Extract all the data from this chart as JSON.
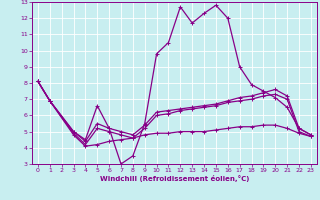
{
  "xlabel": "Windchill (Refroidissement éolien,°C)",
  "background_color": "#c8eef0",
  "grid_color": "#ffffff",
  "line_color": "#880088",
  "xlim": [
    -0.5,
    23.5
  ],
  "ylim": [
    3,
    13
  ],
  "xticks": [
    0,
    1,
    2,
    3,
    4,
    5,
    6,
    7,
    8,
    9,
    10,
    11,
    12,
    13,
    14,
    15,
    16,
    17,
    18,
    19,
    20,
    21,
    22,
    23
  ],
  "yticks": [
    3,
    4,
    5,
    6,
    7,
    8,
    9,
    10,
    11,
    12,
    13
  ],
  "series": {
    "main": {
      "x": [
        0,
        1,
        3,
        4,
        5,
        6,
        7,
        8,
        9,
        10,
        11,
        12,
        13,
        14,
        15,
        16,
        17,
        18,
        19,
        20,
        21,
        22,
        23
      ],
      "y": [
        8.1,
        6.9,
        5.0,
        4.5,
        6.6,
        5.2,
        3.0,
        3.5,
        5.5,
        9.8,
        10.5,
        12.7,
        11.7,
        12.3,
        12.8,
        12.0,
        9.0,
        7.9,
        7.5,
        7.1,
        6.5,
        5.2,
        4.8
      ]
    },
    "line2": {
      "x": [
        0,
        1,
        3,
        4,
        5,
        6,
        7,
        8,
        9,
        10,
        11,
        12,
        13,
        14,
        15,
        16,
        17,
        18,
        19,
        20,
        21,
        22,
        23
      ],
      "y": [
        8.1,
        6.9,
        5.0,
        4.4,
        5.5,
        5.2,
        5.0,
        4.8,
        5.4,
        6.2,
        6.3,
        6.4,
        6.5,
        6.6,
        6.7,
        6.9,
        7.1,
        7.2,
        7.4,
        7.6,
        7.2,
        5.2,
        4.8
      ]
    },
    "line3": {
      "x": [
        0,
        1,
        3,
        4,
        5,
        6,
        7,
        8,
        9,
        10,
        11,
        12,
        13,
        14,
        15,
        16,
        17,
        18,
        19,
        20,
        21,
        22,
        23
      ],
      "y": [
        8.1,
        6.9,
        4.9,
        4.2,
        5.2,
        5.0,
        4.8,
        4.6,
        5.2,
        6.0,
        6.1,
        6.3,
        6.4,
        6.5,
        6.6,
        6.8,
        6.9,
        7.0,
        7.2,
        7.3,
        7.0,
        5.0,
        4.7
      ]
    },
    "line4": {
      "x": [
        0,
        1,
        3,
        4,
        5,
        6,
        7,
        8,
        9,
        10,
        11,
        12,
        13,
        14,
        15,
        16,
        17,
        18,
        19,
        20,
        21,
        22,
        23
      ],
      "y": [
        8.1,
        6.9,
        4.8,
        4.1,
        4.2,
        4.4,
        4.5,
        4.6,
        4.8,
        4.9,
        4.9,
        5.0,
        5.0,
        5.0,
        5.1,
        5.2,
        5.3,
        5.3,
        5.4,
        5.4,
        5.2,
        4.9,
        4.7
      ]
    }
  }
}
